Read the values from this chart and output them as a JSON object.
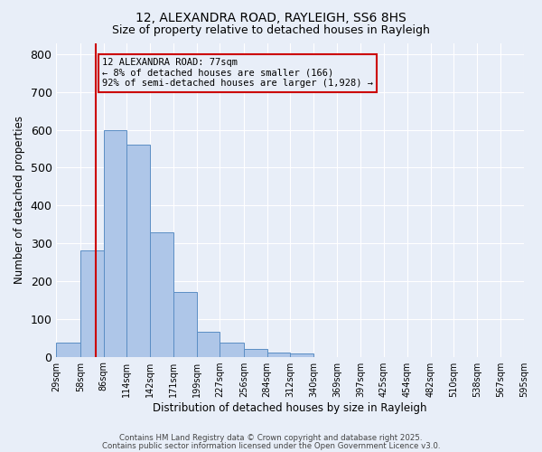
{
  "title1": "12, ALEXANDRA ROAD, RAYLEIGH, SS6 8HS",
  "title2": "Size of property relative to detached houses in Rayleigh",
  "xlabel": "Distribution of detached houses by size in Rayleigh",
  "ylabel": "Number of detached properties",
  "bin_labels": [
    "29sqm",
    "58sqm",
    "86sqm",
    "114sqm",
    "142sqm",
    "171sqm",
    "199sqm",
    "227sqm",
    "256sqm",
    "284sqm",
    "312sqm",
    "340sqm",
    "369sqm",
    "397sqm",
    "425sqm",
    "454sqm",
    "482sqm",
    "510sqm",
    "538sqm",
    "567sqm",
    "595sqm"
  ],
  "bin_edges": [
    29,
    58,
    86,
    114,
    142,
    171,
    199,
    227,
    256,
    284,
    312,
    340,
    369,
    397,
    425,
    454,
    482,
    510,
    538,
    567,
    595
  ],
  "bar_heights": [
    37,
    280,
    600,
    560,
    330,
    170,
    67,
    37,
    20,
    10,
    8,
    0,
    0,
    0,
    0,
    0,
    0,
    0,
    0,
    0
  ],
  "bar_color": "#aec6e8",
  "bar_edge_color": "#5b8ec4",
  "bg_color": "#e8eef8",
  "grid_color": "#ffffff",
  "vline_x": 77,
  "vline_color": "#cc0000",
  "annotation_line1": "12 ALEXANDRA ROAD: 77sqm",
  "annotation_line2": "← 8% of detached houses are smaller (166)",
  "annotation_line3": "92% of semi-detached houses are larger (1,928) →",
  "annotation_box_color": "#cc0000",
  "ylim": [
    0,
    830
  ],
  "yticks": [
    0,
    100,
    200,
    300,
    400,
    500,
    600,
    700,
    800
  ],
  "footer1": "Contains HM Land Registry data © Crown copyright and database right 2025.",
  "footer2": "Contains public sector information licensed under the Open Government Licence v3.0."
}
